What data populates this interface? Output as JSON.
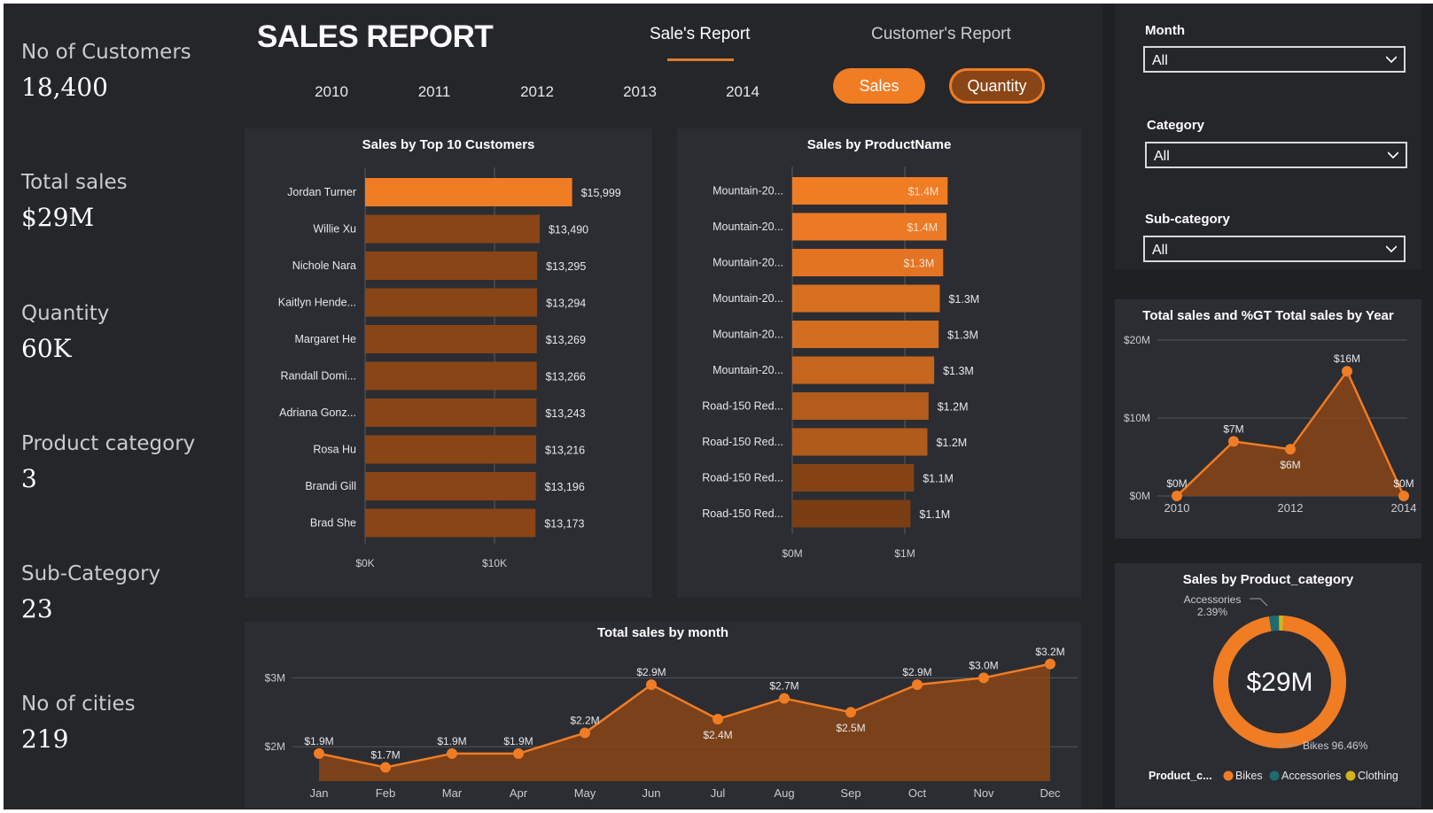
{
  "kpis": [
    {
      "label": "No of Customers",
      "value": "18,400"
    },
    {
      "label": "Total sales",
      "value": "$29M"
    },
    {
      "label": "Quantity",
      "value": "60K"
    },
    {
      "label": "Product category",
      "value": "3"
    },
    {
      "label": "Sub-Category",
      "value": "23"
    },
    {
      "label": "No of cities",
      "value": "219"
    }
  ],
  "header": {
    "title": "SALES REPORT",
    "tabs": [
      "Sale's Report",
      "Customer's Report"
    ],
    "years": [
      "2010",
      "2011",
      "2012",
      "2013",
      "2014"
    ],
    "toggle": {
      "sales": "Sales",
      "quantity": "Quantity"
    }
  },
  "filters": [
    {
      "label": "Month",
      "value": "All"
    },
    {
      "label": "Category",
      "value": "All"
    },
    {
      "label": "Sub-category",
      "value": "All"
    }
  ],
  "colors": {
    "accent": "#f07c24",
    "dark_bar": "#8a4516",
    "panel": "#2b2d32"
  },
  "chart_data": [
    {
      "id": "top_customers",
      "type": "bar",
      "orientation": "horizontal",
      "title": "Sales by Top 10 Customers",
      "categories": [
        "Jordan Turner",
        "Willie Xu",
        "Nichole Nara",
        "Kaitlyn Hende...",
        "Margaret He",
        "Randall Domi...",
        "Adriana Gonz...",
        "Rosa Hu",
        "Brandi Gill",
        "Brad She"
      ],
      "values": [
        15999,
        13490,
        13295,
        13294,
        13269,
        13266,
        13243,
        13216,
        13196,
        13173
      ],
      "data_labels": [
        "$15,999",
        "$13,490",
        "$13,295",
        "$13,294",
        "$13,269",
        "$13,266",
        "$13,243",
        "$13,216",
        "$13,196",
        "$13,173"
      ],
      "x_ticks": [
        "$0K",
        "$10K"
      ],
      "xlim": [
        0,
        20000
      ]
    },
    {
      "id": "by_product",
      "type": "bar",
      "orientation": "horizontal",
      "title": "Sales by ProductName",
      "categories": [
        "Mountain-20...",
        "Mountain-20...",
        "Mountain-20...",
        "Mountain-20...",
        "Mountain-20...",
        "Mountain-20...",
        "Road-150 Red...",
        "Road-150 Red...",
        "Road-150 Red...",
        "Road-150 Red..."
      ],
      "values": [
        1.38,
        1.37,
        1.34,
        1.31,
        1.3,
        1.26,
        1.21,
        1.2,
        1.08,
        1.05
      ],
      "data_labels": [
        "$1.4M",
        "$1.4M",
        "$1.3M",
        "$1.3M",
        "$1.3M",
        "$1.3M",
        "$1.2M",
        "$1.2M",
        "$1.1M",
        "$1.1M"
      ],
      "x_ticks": [
        "$0M",
        "$1M"
      ],
      "xlim": [
        0,
        1.7
      ]
    },
    {
      "id": "by_year",
      "type": "area",
      "title": "Total sales and %GT Total sales by Year",
      "x": [
        "2010",
        "2011",
        "2012",
        "2013",
        "2014"
      ],
      "x_ticks": [
        "2010",
        "2012",
        "2014"
      ],
      "values": [
        0,
        7,
        6,
        16,
        0
      ],
      "data_labels": [
        "$0M",
        "$7M",
        "$6M",
        "$16M",
        "$0M"
      ],
      "y_ticks": [
        "$0M",
        "$10M",
        "$20M"
      ],
      "ylim": [
        0,
        20
      ]
    },
    {
      "id": "by_category",
      "type": "pie",
      "title": "Sales by Product_category",
      "center_label": "$29M",
      "legend_title": "Product_c...",
      "slices": [
        {
          "name": "Bikes",
          "value": 96.46,
          "label": "Bikes 96.46%",
          "color": "#f07c24"
        },
        {
          "name": "Accessories",
          "value": 2.39,
          "label": "Accessories 2.39%",
          "color": "#1f6b72"
        },
        {
          "name": "Clothing",
          "value": 1.15,
          "label": "",
          "color": "#d4b21c"
        }
      ]
    },
    {
      "id": "by_month",
      "type": "area",
      "title": "Total sales by month",
      "x": [
        "Jan",
        "Feb",
        "Mar",
        "Apr",
        "May",
        "Jun",
        "Jul",
        "Aug",
        "Sep",
        "Oct",
        "Nov",
        "Dec"
      ],
      "values": [
        1.9,
        1.7,
        1.9,
        1.9,
        2.2,
        2.9,
        2.4,
        2.7,
        2.5,
        2.9,
        3.0,
        3.2
      ],
      "data_labels": [
        "$1.9M",
        "$1.7M",
        "$1.9M",
        "$1.9M",
        "$2.2M",
        "$2.9M",
        "$2.4M",
        "$2.7M",
        "$2.5M",
        "$2.9M",
        "$3.0M",
        "$3.2M"
      ],
      "y_ticks": [
        "$2M",
        "$3M"
      ],
      "ylim": [
        1.5,
        3.3
      ]
    }
  ]
}
